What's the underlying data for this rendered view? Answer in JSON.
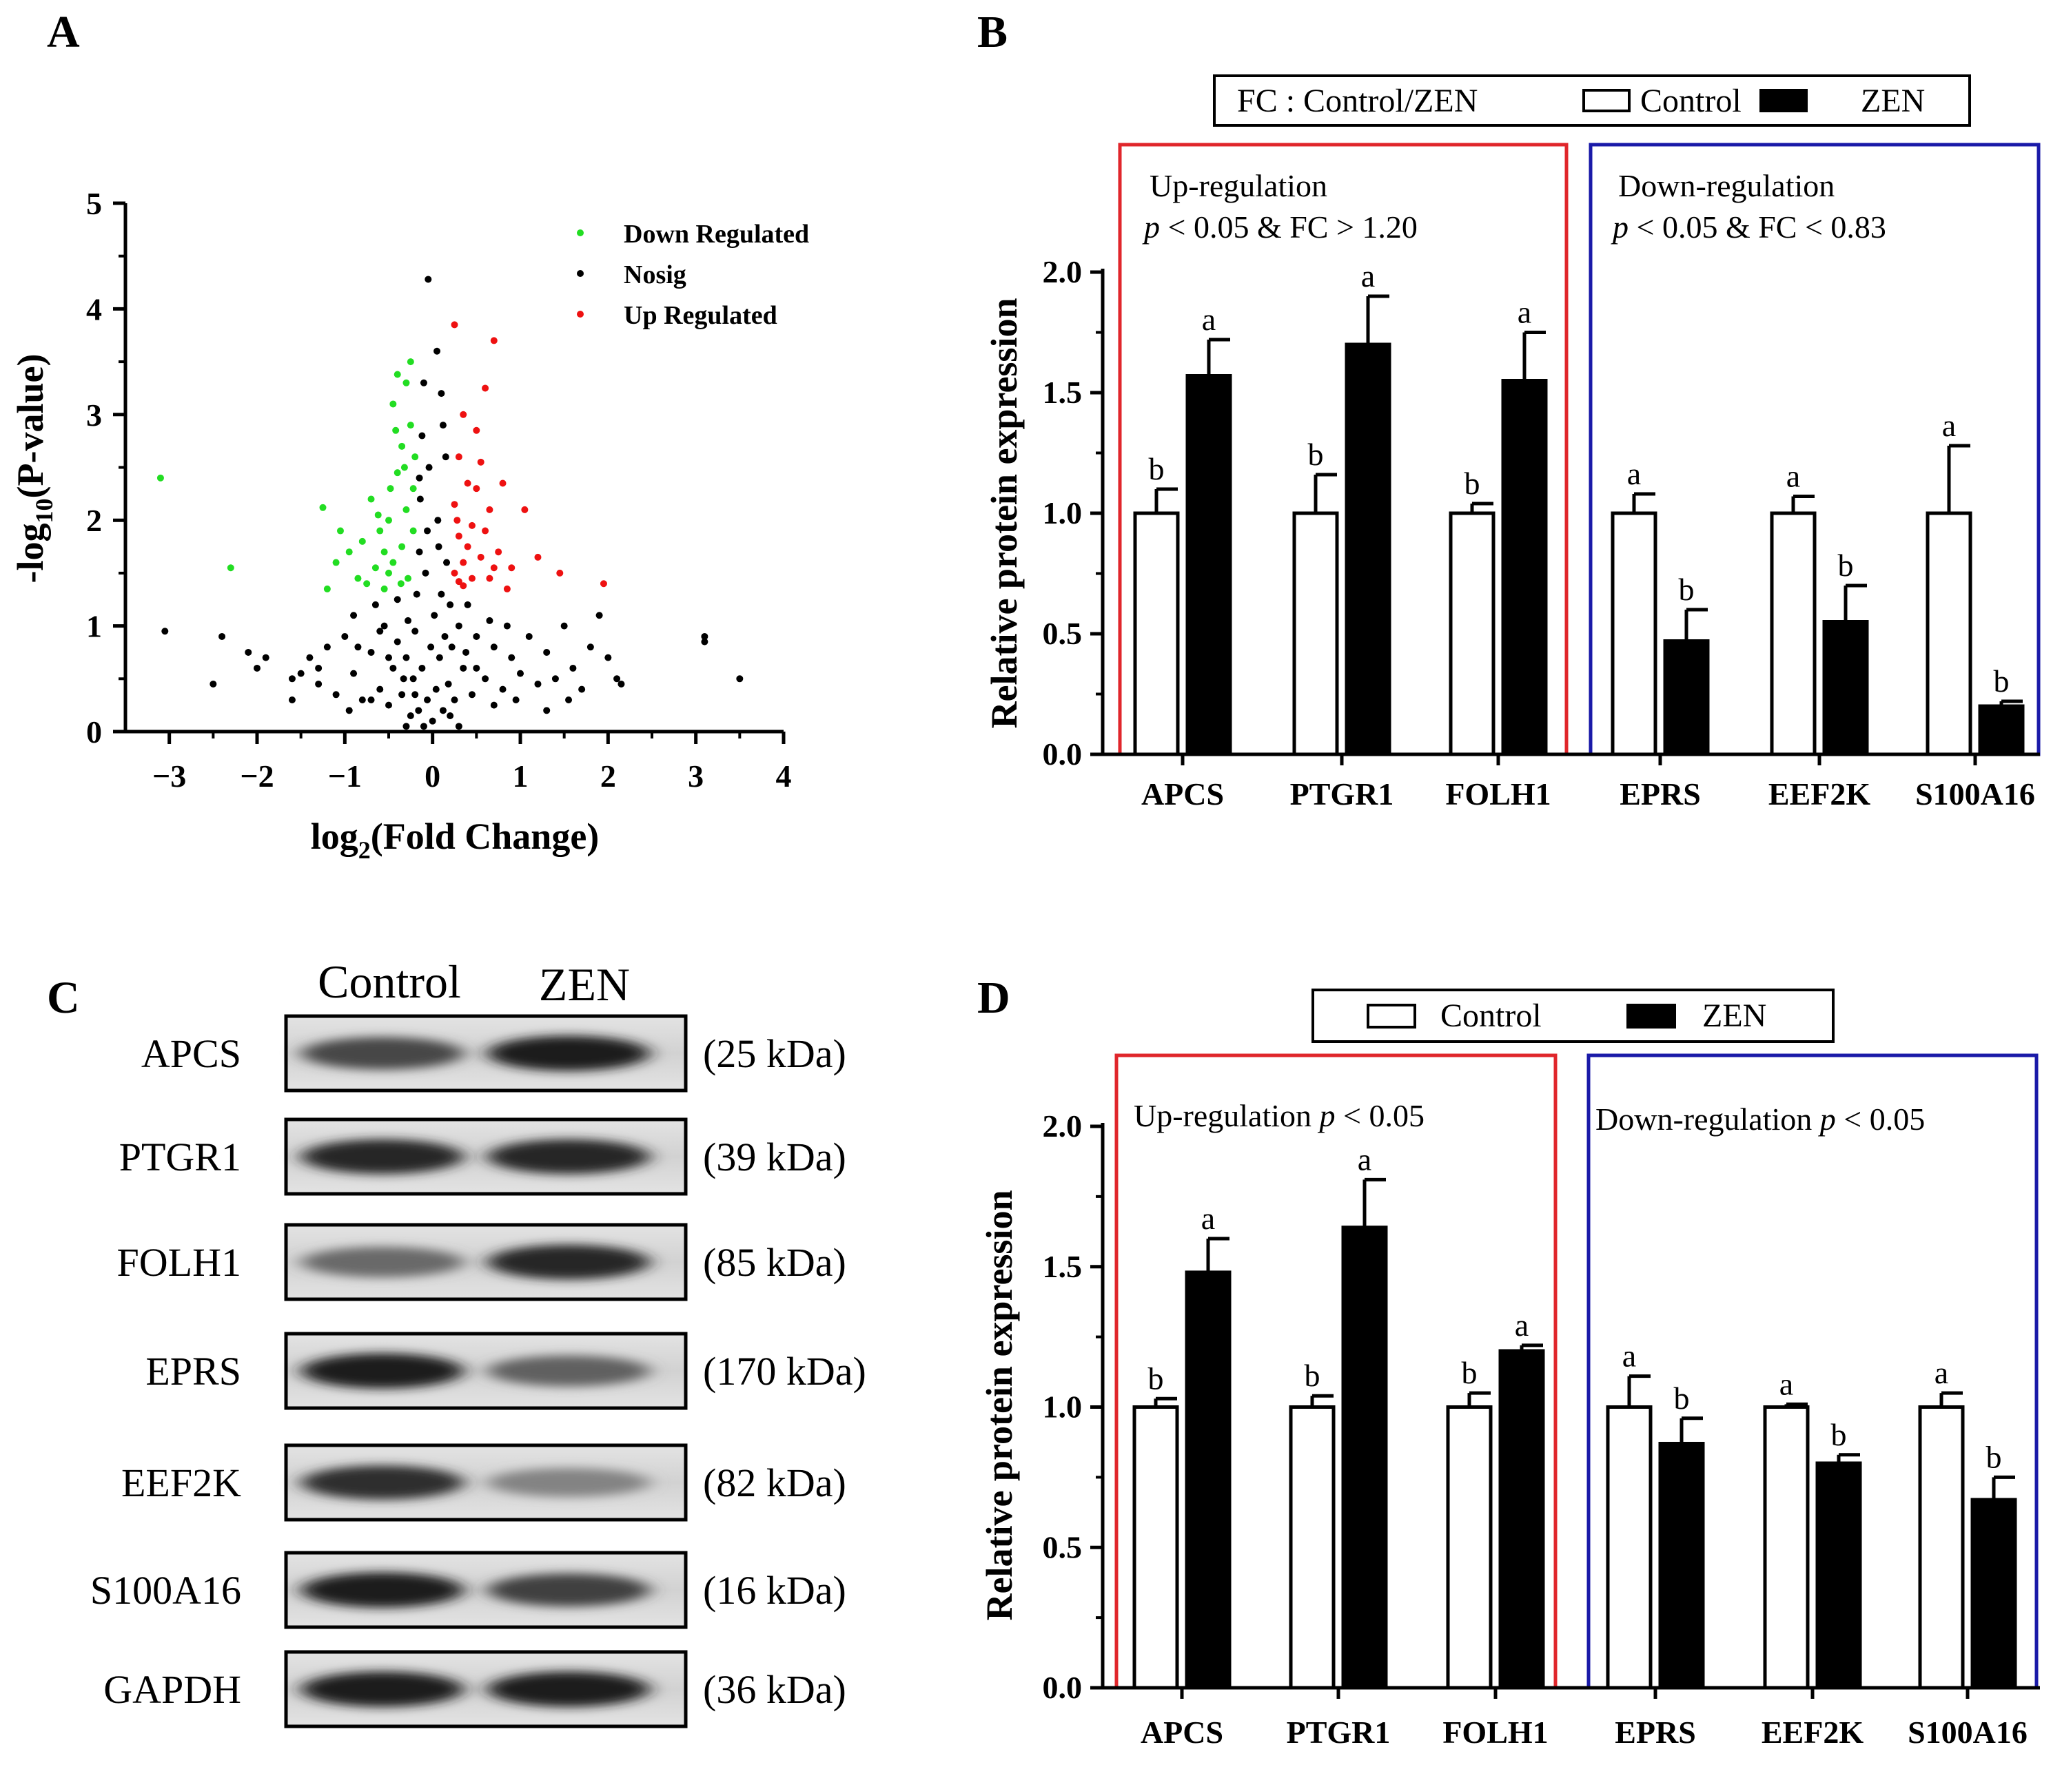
{
  "panels": {
    "a": {
      "letter": "A"
    },
    "b": {
      "letter": "B"
    },
    "c": {
      "letter": "C"
    },
    "d": {
      "letter": "D"
    }
  },
  "colors": {
    "down": "#22dd22",
    "nosig": "#000000",
    "up": "#ee1111",
    "up_box": "#e0262b",
    "down_box": "#1a1aa8",
    "control_fill": "#ffffff",
    "zen_fill": "#000000"
  },
  "chart_data": [
    {
      "id": "A",
      "type": "scatter",
      "title": "",
      "xlabel": "log2(Fold Change)",
      "ylabel": "-log10(P-value)",
      "xlim": [
        -3.5,
        4
      ],
      "ylim": [
        0,
        5
      ],
      "xticks": [
        -3,
        -2,
        -1,
        0,
        1,
        2,
        3,
        4
      ],
      "yticks": [
        0,
        1,
        2,
        3,
        4,
        5
      ],
      "legend": {
        "placement": "top-right",
        "entries": [
          "Down Regulated",
          "Nosig",
          "Up Regulated"
        ]
      },
      "series": [
        {
          "name": "Down Regulated",
          "color": "#22dd22",
          "points": [
            [
              -3.1,
              2.4
            ],
            [
              -2.3,
              1.55
            ],
            [
              -1.25,
              2.12
            ],
            [
              -1.2,
              1.35
            ],
            [
              -1.1,
              1.6
            ],
            [
              -1.05,
              1.9
            ],
            [
              -0.95,
              1.7
            ],
            [
              -0.85,
              1.45
            ],
            [
              -0.8,
              1.8
            ],
            [
              -0.75,
              1.4
            ],
            [
              -0.7,
              2.2
            ],
            [
              -0.65,
              1.55
            ],
            [
              -0.6,
              1.9
            ],
            [
              -0.55,
              1.35
            ],
            [
              -0.5,
              2.0
            ],
            [
              -0.45,
              3.1
            ],
            [
              -0.45,
              1.6
            ],
            [
              -0.4,
              2.45
            ],
            [
              -0.4,
              3.38
            ],
            [
              -0.35,
              1.75
            ],
            [
              -0.35,
              2.7
            ],
            [
              -0.3,
              3.3
            ],
            [
              -0.3,
              2.1
            ],
            [
              -0.28,
              1.45
            ],
            [
              -0.25,
              2.9
            ],
            [
              -0.25,
              3.5
            ],
            [
              -0.22,
              1.9
            ],
            [
              -0.22,
              2.3
            ],
            [
              -0.2,
              2.6
            ],
            [
              -0.5,
              1.5
            ],
            [
              -0.55,
              1.7
            ],
            [
              -0.62,
              2.05
            ],
            [
              -0.48,
              2.3
            ],
            [
              -0.36,
              1.4
            ],
            [
              -0.42,
              2.85
            ],
            [
              -0.32,
              2.5
            ]
          ]
        },
        {
          "name": "Up Regulated",
          "color": "#ee1111",
          "points": [
            [
              0.25,
              3.85
            ],
            [
              0.7,
              3.7
            ],
            [
              0.6,
              3.25
            ],
            [
              0.35,
              3.0
            ],
            [
              0.5,
              2.85
            ],
            [
              0.3,
              2.6
            ],
            [
              0.55,
              2.55
            ],
            [
              0.8,
              2.35
            ],
            [
              0.4,
              2.35
            ],
            [
              0.25,
              2.15
            ],
            [
              0.65,
              2.1
            ],
            [
              0.45,
              1.95
            ],
            [
              0.3,
              1.85
            ],
            [
              0.75,
              1.7
            ],
            [
              1.05,
              2.1
            ],
            [
              0.55,
              1.65
            ],
            [
              0.35,
              1.6
            ],
            [
              0.9,
              1.55
            ],
            [
              1.2,
              1.65
            ],
            [
              0.25,
              1.5
            ],
            [
              0.45,
              1.45
            ],
            [
              0.65,
              1.45
            ],
            [
              1.45,
              1.5
            ],
            [
              1.95,
              1.4
            ],
            [
              0.35,
              1.38
            ],
            [
              0.85,
              1.35
            ],
            [
              0.5,
              2.3
            ],
            [
              0.28,
              2.0
            ],
            [
              0.4,
              1.75
            ],
            [
              0.6,
              1.9
            ],
            [
              0.7,
              1.55
            ],
            [
              0.3,
              1.42
            ]
          ]
        },
        {
          "name": "Nosig",
          "color": "#000000",
          "points": [
            [
              -3.05,
              0.95
            ],
            [
              -2.5,
              0.45
            ],
            [
              -2.4,
              0.9
            ],
            [
              -2.1,
              0.75
            ],
            [
              -2.0,
              0.6
            ],
            [
              -1.9,
              0.7
            ],
            [
              -1.6,
              0.5
            ],
            [
              -1.5,
              0.55
            ],
            [
              -1.4,
              0.7
            ],
            [
              -1.3,
              0.45
            ],
            [
              -1.2,
              0.8
            ],
            [
              -1.1,
              0.35
            ],
            [
              -1.0,
              0.9
            ],
            [
              -0.9,
              1.1
            ],
            [
              -0.9,
              0.55
            ],
            [
              -0.8,
              0.3
            ],
            [
              -0.7,
              0.75
            ],
            [
              -0.65,
              1.2
            ],
            [
              -0.6,
              0.4
            ],
            [
              -0.55,
              1.0
            ],
            [
              -0.5,
              0.25
            ],
            [
              -0.45,
              0.6
            ],
            [
              -0.4,
              0.85
            ],
            [
              -0.4,
              1.25
            ],
            [
              -0.35,
              0.35
            ],
            [
              -0.3,
              0.7
            ],
            [
              -0.28,
              1.05
            ],
            [
              -0.25,
              0.15
            ],
            [
              -0.22,
              0.5
            ],
            [
              -0.2,
              0.95
            ],
            [
              -0.18,
              1.3
            ],
            [
              -0.16,
              0.2
            ],
            [
              -0.15,
              1.7
            ],
            [
              -0.14,
              2.2
            ],
            [
              -0.12,
              0.6
            ],
            [
              -0.12,
              2.8
            ],
            [
              -0.1,
              0.05
            ],
            [
              -0.1,
              3.3
            ],
            [
              -0.08,
              1.5
            ],
            [
              -0.06,
              0.3
            ],
            [
              -0.05,
              4.28
            ],
            [
              -0.04,
              2.5
            ],
            [
              -0.02,
              0.8
            ],
            [
              0.0,
              0.1
            ],
            [
              0.02,
              1.1
            ],
            [
              0.04,
              0.4
            ],
            [
              0.05,
              3.6
            ],
            [
              0.06,
              2.0
            ],
            [
              0.08,
              0.7
            ],
            [
              0.1,
              1.3
            ],
            [
              0.1,
              3.2
            ],
            [
              0.12,
              0.2
            ],
            [
              0.14,
              0.9
            ],
            [
              0.15,
              2.6
            ],
            [
              0.16,
              1.6
            ],
            [
              0.18,
              0.45
            ],
            [
              0.2,
              1.2
            ],
            [
              0.22,
              0.8
            ],
            [
              0.25,
              0.3
            ],
            [
              0.3,
              1.0
            ],
            [
              0.35,
              0.6
            ],
            [
              0.4,
              1.2
            ],
            [
              0.45,
              0.35
            ],
            [
              0.5,
              0.9
            ],
            [
              0.6,
              0.5
            ],
            [
              0.7,
              0.8
            ],
            [
              0.8,
              0.4
            ],
            [
              0.9,
              0.7
            ],
            [
              1.0,
              0.55
            ],
            [
              1.1,
              0.9
            ],
            [
              1.2,
              0.45
            ],
            [
              1.3,
              0.75
            ],
            [
              1.4,
              0.5
            ],
            [
              1.5,
              1.0
            ],
            [
              1.6,
              0.6
            ],
            [
              1.7,
              0.4
            ],
            [
              1.8,
              0.8
            ],
            [
              1.9,
              1.1
            ],
            [
              2.0,
              0.7
            ],
            [
              2.1,
              0.5
            ],
            [
              3.1,
              0.9
            ],
            [
              3.1,
              0.85
            ],
            [
              3.5,
              0.5
            ],
            [
              -0.3,
              0.05
            ],
            [
              0.3,
              0.05
            ],
            [
              -0.5,
              0.7
            ],
            [
              0.5,
              0.6
            ],
            [
              -0.7,
              0.3
            ],
            [
              0.7,
              0.25
            ],
            [
              -0.15,
              2.4
            ],
            [
              0.12,
              2.9
            ],
            [
              -0.2,
              0.35
            ],
            [
              0.2,
              0.15
            ],
            [
              -1.3,
              0.6
            ],
            [
              1.3,
              0.2
            ],
            [
              -0.95,
              0.2
            ],
            [
              0.95,
              0.3
            ],
            [
              -0.06,
              1.9
            ],
            [
              0.07,
              1.75
            ],
            [
              -0.33,
              0.5
            ],
            [
              0.38,
              0.75
            ],
            [
              -0.6,
              0.95
            ],
            [
              0.65,
              1.05
            ],
            [
              -0.85,
              0.8
            ],
            [
              0.85,
              1.0
            ],
            [
              -1.6,
              0.3
            ],
            [
              1.55,
              0.3
            ],
            [
              2.15,
              0.45
            ]
          ]
        }
      ]
    },
    {
      "id": "B",
      "type": "bar",
      "title": "",
      "xlabel": "",
      "ylabel": "Relative protein expression",
      "ylim": [
        0,
        2.0
      ],
      "yticks": [
        "0.0",
        "0.5",
        "1.0",
        "1.5",
        "2.0"
      ],
      "categories": [
        "APCS",
        "PTGR1",
        "FOLH1",
        "EPRS",
        "EEF2K",
        "S100A16"
      ],
      "legend": {
        "prefix": "FC : Control/ZEN",
        "entries": [
          "Control",
          "ZEN"
        ],
        "placement": "top"
      },
      "series": [
        {
          "name": "Control",
          "values": [
            1.0,
            1.0,
            1.0,
            1.0,
            1.0,
            1.0
          ],
          "errors": [
            0.1,
            0.16,
            0.04,
            0.08,
            0.07,
            0.28
          ],
          "labels": [
            "b",
            "b",
            "b",
            "a",
            "a",
            "a"
          ]
        },
        {
          "name": "ZEN",
          "values": [
            1.57,
            1.7,
            1.55,
            0.47,
            0.55,
            0.2
          ],
          "errors": [
            0.15,
            0.2,
            0.2,
            0.13,
            0.15,
            0.02
          ],
          "labels": [
            "a",
            "a",
            "a",
            "b",
            "b",
            "b"
          ]
        }
      ],
      "groups": [
        {
          "line1": "Up-regulation",
          "line2_p": "p",
          "line2_rest": " < 0.05 & FC > 1.20",
          "color": "#e0262b"
        },
        {
          "line1": "Down-regulation",
          "line2_p": "p",
          "line2_rest": " < 0.05 & FC < 0.83",
          "color": "#1a1aa8"
        }
      ]
    },
    {
      "id": "D",
      "type": "bar",
      "title": "",
      "xlabel": "",
      "ylabel": "Relative protein expression",
      "ylim": [
        0,
        2.0
      ],
      "yticks": [
        "0.0",
        "0.5",
        "1.0",
        "1.5",
        "2.0"
      ],
      "categories": [
        "APCS",
        "PTGR1",
        "FOLH1",
        "EPRS",
        "EEF2K",
        "S100A16"
      ],
      "legend": {
        "entries": [
          "Control",
          "ZEN"
        ],
        "placement": "top"
      },
      "series": [
        {
          "name": "Control",
          "values": [
            1.0,
            1.0,
            1.0,
            1.0,
            1.0,
            1.0
          ],
          "errors": [
            0.03,
            0.04,
            0.05,
            0.11,
            0.01,
            0.05
          ],
          "labels": [
            "b",
            "b",
            "b",
            "a",
            "a",
            "a"
          ]
        },
        {
          "name": "ZEN",
          "values": [
            1.48,
            1.64,
            1.2,
            0.87,
            0.8,
            0.67
          ],
          "errors": [
            0.12,
            0.17,
            0.02,
            0.09,
            0.03,
            0.08
          ],
          "labels": [
            "a",
            "a",
            "a",
            "b",
            "b",
            "b"
          ]
        }
      ],
      "groups": [
        {
          "line1": "Up-regulation ",
          "line1_p": "p",
          "line1_rest": " < 0.05",
          "color": "#e0262b"
        },
        {
          "line1": "Down-regulation ",
          "line1_p": "p",
          "line1_rest": " < 0.05",
          "color": "#1a1aa8"
        }
      ]
    }
  ],
  "western_blot": {
    "lanes": [
      "Control",
      "ZEN"
    ],
    "proteins": [
      {
        "name": "APCS",
        "kda": "(25 kDa)",
        "control": 0.7,
        "zen": 0.95
      },
      {
        "name": "PTGR1",
        "kda": "(39 kDa)",
        "control": 0.9,
        "zen": 0.9
      },
      {
        "name": "FOLH1",
        "kda": "(85 kDa)",
        "control": 0.5,
        "zen": 0.9
      },
      {
        "name": "EPRS",
        "kda": "(170 kDa)",
        "control": 0.95,
        "zen": 0.55
      },
      {
        "name": "EEF2K",
        "kda": "(82 kDa)",
        "control": 0.85,
        "zen": 0.35
      },
      {
        "name": "S100A16",
        "kda": "(16 kDa)",
        "control": 0.95,
        "zen": 0.75
      },
      {
        "name": "GAPDH",
        "kda": "(36 kDa)",
        "control": 0.95,
        "zen": 0.95
      }
    ]
  }
}
